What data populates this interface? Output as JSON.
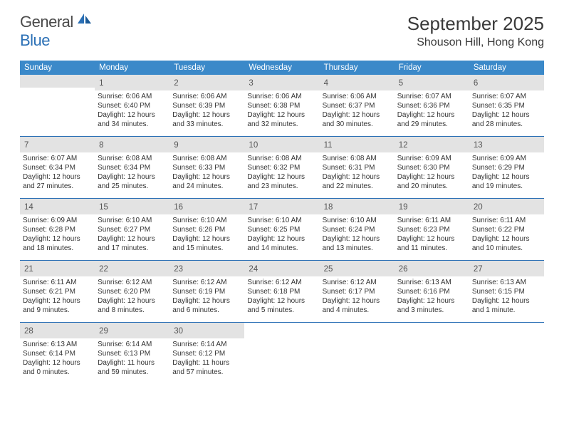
{
  "logo": {
    "text1": "General",
    "text2": "Blue"
  },
  "title": "September 2025",
  "location": "Shouson Hill, Hong Kong",
  "header_bg": "#3b89c9",
  "daynum_bg": "#e3e3e3",
  "divider_color": "#2a6fb5",
  "weekdays": [
    "Sunday",
    "Monday",
    "Tuesday",
    "Wednesday",
    "Thursday",
    "Friday",
    "Saturday"
  ],
  "weeks": [
    [
      null,
      {
        "n": "1",
        "sr": "6:06 AM",
        "ss": "6:40 PM",
        "d": "12 hours and 34 minutes."
      },
      {
        "n": "2",
        "sr": "6:06 AM",
        "ss": "6:39 PM",
        "d": "12 hours and 33 minutes."
      },
      {
        "n": "3",
        "sr": "6:06 AM",
        "ss": "6:38 PM",
        "d": "12 hours and 32 minutes."
      },
      {
        "n": "4",
        "sr": "6:06 AM",
        "ss": "6:37 PM",
        "d": "12 hours and 30 minutes."
      },
      {
        "n": "5",
        "sr": "6:07 AM",
        "ss": "6:36 PM",
        "d": "12 hours and 29 minutes."
      },
      {
        "n": "6",
        "sr": "6:07 AM",
        "ss": "6:35 PM",
        "d": "12 hours and 28 minutes."
      }
    ],
    [
      {
        "n": "7",
        "sr": "6:07 AM",
        "ss": "6:34 PM",
        "d": "12 hours and 27 minutes."
      },
      {
        "n": "8",
        "sr": "6:08 AM",
        "ss": "6:34 PM",
        "d": "12 hours and 25 minutes."
      },
      {
        "n": "9",
        "sr": "6:08 AM",
        "ss": "6:33 PM",
        "d": "12 hours and 24 minutes."
      },
      {
        "n": "10",
        "sr": "6:08 AM",
        "ss": "6:32 PM",
        "d": "12 hours and 23 minutes."
      },
      {
        "n": "11",
        "sr": "6:08 AM",
        "ss": "6:31 PM",
        "d": "12 hours and 22 minutes."
      },
      {
        "n": "12",
        "sr": "6:09 AM",
        "ss": "6:30 PM",
        "d": "12 hours and 20 minutes."
      },
      {
        "n": "13",
        "sr": "6:09 AM",
        "ss": "6:29 PM",
        "d": "12 hours and 19 minutes."
      }
    ],
    [
      {
        "n": "14",
        "sr": "6:09 AM",
        "ss": "6:28 PM",
        "d": "12 hours and 18 minutes."
      },
      {
        "n": "15",
        "sr": "6:10 AM",
        "ss": "6:27 PM",
        "d": "12 hours and 17 minutes."
      },
      {
        "n": "16",
        "sr": "6:10 AM",
        "ss": "6:26 PM",
        "d": "12 hours and 15 minutes."
      },
      {
        "n": "17",
        "sr": "6:10 AM",
        "ss": "6:25 PM",
        "d": "12 hours and 14 minutes."
      },
      {
        "n": "18",
        "sr": "6:10 AM",
        "ss": "6:24 PM",
        "d": "12 hours and 13 minutes."
      },
      {
        "n": "19",
        "sr": "6:11 AM",
        "ss": "6:23 PM",
        "d": "12 hours and 11 minutes."
      },
      {
        "n": "20",
        "sr": "6:11 AM",
        "ss": "6:22 PM",
        "d": "12 hours and 10 minutes."
      }
    ],
    [
      {
        "n": "21",
        "sr": "6:11 AM",
        "ss": "6:21 PM",
        "d": "12 hours and 9 minutes."
      },
      {
        "n": "22",
        "sr": "6:12 AM",
        "ss": "6:20 PM",
        "d": "12 hours and 8 minutes."
      },
      {
        "n": "23",
        "sr": "6:12 AM",
        "ss": "6:19 PM",
        "d": "12 hours and 6 minutes."
      },
      {
        "n": "24",
        "sr": "6:12 AM",
        "ss": "6:18 PM",
        "d": "12 hours and 5 minutes."
      },
      {
        "n": "25",
        "sr": "6:12 AM",
        "ss": "6:17 PM",
        "d": "12 hours and 4 minutes."
      },
      {
        "n": "26",
        "sr": "6:13 AM",
        "ss": "6:16 PM",
        "d": "12 hours and 3 minutes."
      },
      {
        "n": "27",
        "sr": "6:13 AM",
        "ss": "6:15 PM",
        "d": "12 hours and 1 minute."
      }
    ],
    [
      {
        "n": "28",
        "sr": "6:13 AM",
        "ss": "6:14 PM",
        "d": "12 hours and 0 minutes."
      },
      {
        "n": "29",
        "sr": "6:14 AM",
        "ss": "6:13 PM",
        "d": "11 hours and 59 minutes."
      },
      {
        "n": "30",
        "sr": "6:14 AM",
        "ss": "6:12 PM",
        "d": "11 hours and 57 minutes."
      },
      null,
      null,
      null,
      null
    ]
  ]
}
